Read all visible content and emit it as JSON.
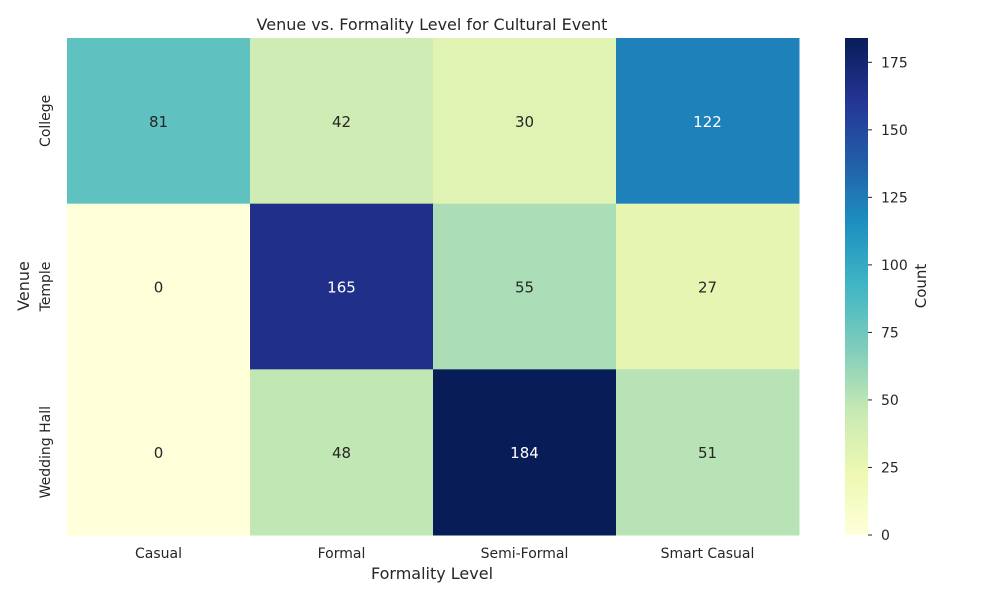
{
  "chart_data": {
    "type": "heatmap",
    "title": "Venue vs. Formality Level for Cultural Event",
    "xlabel": "Formality Level",
    "ylabel": "Venue",
    "x_categories": [
      "Casual",
      "Formal",
      "Semi-Formal",
      "Smart Casual"
    ],
    "y_categories": [
      "College",
      "Temple",
      "Wedding Hall"
    ],
    "values": [
      [
        81,
        42,
        30,
        122
      ],
      [
        0,
        165,
        55,
        27
      ],
      [
        0,
        48,
        184,
        51
      ]
    ],
    "colormap": "YlGnBu",
    "vmin": 0,
    "vmax": 184,
    "colorbar": {
      "label": "Count",
      "ticks": [
        0,
        25,
        50,
        75,
        100,
        125,
        150,
        175
      ]
    }
  }
}
